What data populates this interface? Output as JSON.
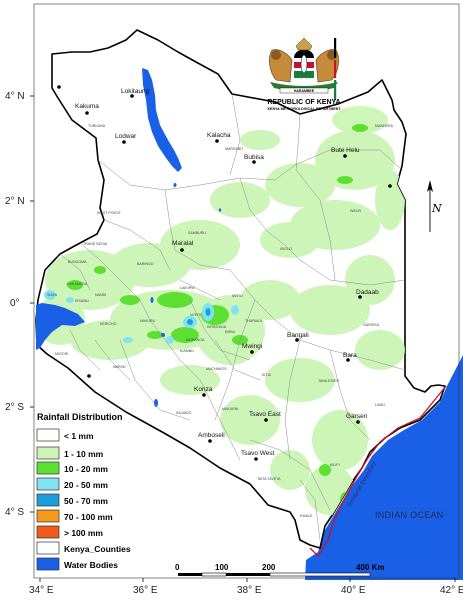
{
  "coat_of_arms": {
    "title": "REPUBLIC OF KENYA",
    "subtitle": "KENYA METEOROLOGICAL DEPARTMENT",
    "motto": "HARAMBEE"
  },
  "axes": {
    "x_ticks": [
      "34° E",
      "36° E",
      "38° E",
      "40° E",
      "42° E"
    ],
    "y_ticks": [
      "4° N",
      "2° N",
      "0°",
      "2° S",
      "4° S"
    ]
  },
  "towns": [
    {
      "name": "Lokitaung",
      "key": "lokitaung"
    },
    {
      "name": "Kakuma",
      "key": "kakuma"
    },
    {
      "name": "Lodwar",
      "key": "lodwar"
    },
    {
      "name": "Kalacha",
      "key": "kalacha"
    },
    {
      "name": "Bubisa",
      "key": "bubisa"
    },
    {
      "name": "Bute Helu",
      "key": "bute-helu"
    },
    {
      "name": "Maralal",
      "key": "maralal"
    },
    {
      "name": "Dadaab",
      "key": "dadaab"
    },
    {
      "name": "Bangali",
      "key": "bangali"
    },
    {
      "name": "Bara",
      "key": "bara"
    },
    {
      "name": "Mwingi",
      "key": "mwingi"
    },
    {
      "name": "Konza",
      "key": "konza"
    },
    {
      "name": "Tsavo East",
      "key": "tsavo-east"
    },
    {
      "name": "Garsen",
      "key": "garsen"
    },
    {
      "name": "Amboseli",
      "key": "amboseli"
    },
    {
      "name": "Tsavo West",
      "key": "tsavo-west"
    }
  ],
  "county_labels": [
    {
      "name": "TURKANA",
      "key": "turkana"
    },
    {
      "name": "MARSABIT",
      "key": "marsabit"
    },
    {
      "name": "MANDERA",
      "key": "mandera"
    },
    {
      "name": "WAJIR",
      "key": "wajir"
    },
    {
      "name": "WEST POKOT",
      "key": "west-pokot"
    },
    {
      "name": "SAMBURU",
      "key": "samburu"
    },
    {
      "name": "ISIOLO",
      "key": "isiolo"
    },
    {
      "name": "GARISSA",
      "key": "garissa"
    },
    {
      "name": "KITUI",
      "key": "kitui"
    },
    {
      "name": "TANA RIVER",
      "key": "tana-river"
    },
    {
      "name": "LAMU",
      "key": "lamu"
    },
    {
      "name": "KILIFI",
      "key": "kilifi"
    },
    {
      "name": "KWALE",
      "key": "kwale"
    },
    {
      "name": "TAITA TAVETA",
      "key": "taita-taveta"
    },
    {
      "name": "KAJIADO",
      "key": "kajiado"
    },
    {
      "name": "MAKUENI",
      "key": "makueni"
    },
    {
      "name": "MACHAKOS",
      "key": "machakos"
    },
    {
      "name": "NAROK",
      "key": "narok"
    },
    {
      "name": "MIGORI",
      "key": "migori"
    },
    {
      "name": "BARINGO",
      "key": "baringo"
    },
    {
      "name": "LAIKIPIA",
      "key": "laikipia"
    },
    {
      "name": "MERU",
      "key": "meru"
    },
    {
      "name": "NAKURU",
      "key": "nakuru"
    },
    {
      "name": "MURANGA",
      "key": "muranga"
    },
    {
      "name": "KIAMBU",
      "key": "kiambu"
    },
    {
      "name": "EMBU",
      "key": "embu"
    },
    {
      "name": "NYERI",
      "key": "nyeri"
    },
    {
      "name": "KAKAMEGA",
      "key": "kakamega"
    },
    {
      "name": "TRANS NZOIA",
      "key": "trans-nzoia"
    },
    {
      "name": "BUNGOMA",
      "key": "bungoma"
    },
    {
      "name": "KISUMU",
      "key": "kisumu"
    },
    {
      "name": "SIAYA",
      "key": "siaya"
    },
    {
      "name": "KERICHO",
      "key": "kericho"
    },
    {
      "name": "NANDI",
      "key": "nandi"
    },
    {
      "name": "THARAKA",
      "key": "tharaka"
    },
    {
      "name": "KIRINYAGA",
      "key": "kirinyaga"
    }
  ],
  "ocean_label": "INDIAN OCEAN",
  "boundary_label": "Territorial Boundary",
  "legend": {
    "title": "Rainfall Distribution",
    "items": [
      {
        "label": "< 1 mm",
        "color": "#ffffff"
      },
      {
        "label": "1 - 10 mm",
        "color": "#ccf5b5"
      },
      {
        "label": "10 - 20 mm",
        "color": "#5ee032"
      },
      {
        "label": "20 - 50 mm",
        "color": "#7fe3f2"
      },
      {
        "label": "50 - 70 mm",
        "color": "#1f9fd8"
      },
      {
        "label": "70 - 100 mm",
        "color": "#f39a1d"
      },
      {
        "label": "> 100 mm",
        "color": "#f2591b"
      },
      {
        "label": "Kenya_Counties",
        "color": "#ffffff"
      },
      {
        "label": "Water Bodies",
        "color": "#1a60e6"
      }
    ]
  },
  "scale_bar": {
    "labels": [
      "0",
      "100",
      "200",
      "400 Km"
    ]
  },
  "north_arrow": {
    "label": "N"
  },
  "colors": {
    "ocean": "#1a60e6",
    "lake": "#1a60e6",
    "land": "#ffffff",
    "border": "#000000",
    "county_line": "#7a7a7a",
    "territorial_boundary": "#c8102e"
  }
}
